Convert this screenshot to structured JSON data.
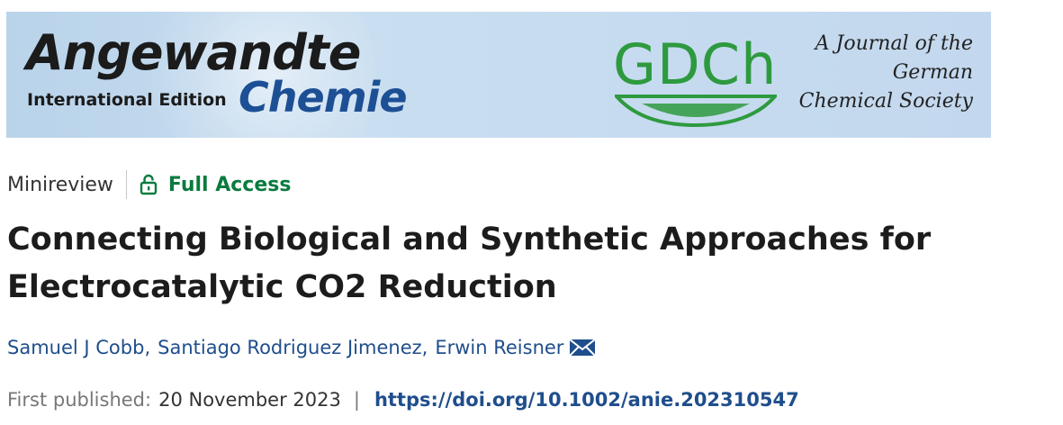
{
  "banner": {
    "logo_line1": "Angewandte",
    "logo_line2": "International Edition",
    "logo_line3": "Chemie",
    "society_logo": "GDCh",
    "tagline": [
      "A Journal of the",
      "German",
      "Chemical Society"
    ],
    "colors": {
      "chemie_blue": "#1d4f95",
      "gdch_green": "#2e9a3f",
      "banner_bg": "#c6dbef"
    }
  },
  "meta": {
    "article_type": "Minireview",
    "access_icon": "lock-open-icon",
    "access_label": "Full Access",
    "access_color": "#0a7b3f"
  },
  "article": {
    "title_line1": "Connecting Biological and Synthetic Approaches for",
    "title_line2": "Electrocatalytic CO2 Reduction",
    "authors": [
      "Samuel J Cobb",
      "Santiago Rodriguez Jimenez",
      "Erwin Reisner"
    ],
    "author_separator": ",",
    "corresponding_icon": "envelope-icon",
    "first_published_label": "First published:",
    "first_published_date": "20 November 2023",
    "pub_separator": "|",
    "doi": "https://doi.org/10.1002/anie.202310547",
    "link_color": "#1f4e8c"
  }
}
